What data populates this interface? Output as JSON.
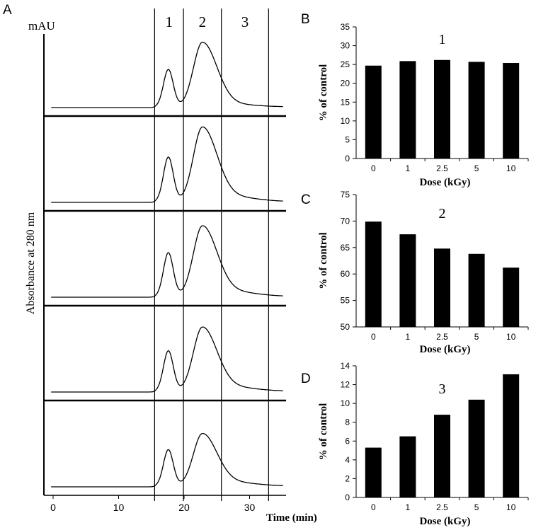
{
  "chart_data": [
    {
      "panel": "A",
      "type": "line",
      "title": "",
      "ylabel": "Absorbance at 280 nm",
      "yunit": "mAU",
      "xlabel": "Time (min)",
      "xlim": [
        -1.5,
        35.5
      ],
      "xticks": [
        0,
        10,
        20,
        30
      ],
      "xtick_labels": [
        "0",
        "10",
        "20",
        "30"
      ],
      "fraction_boundaries": [
        15.5,
        19.9,
        25.7,
        32.9
      ],
      "fraction_labels": [
        {
          "label": "1",
          "x": 17.7
        },
        {
          "label": "2",
          "x": 22.8
        },
        {
          "label": "3",
          "x": 29.3
        }
      ],
      "traces": [
        {
          "name": "trace-1",
          "peak1_height": 0.55,
          "peak2_height": 0.91,
          "tail_height": 0.045
        },
        {
          "name": "trace-2",
          "peak1_height": 0.55,
          "peak2_height": 0.86,
          "tail_height": 0.07
        },
        {
          "name": "trace-3",
          "peak1_height": 0.54,
          "peak2_height": 0.81,
          "tail_height": 0.07
        },
        {
          "name": "trace-4",
          "peak1_height": 0.5,
          "peak2_height": 0.74,
          "tail_height": 0.06
        },
        {
          "name": "trace-5",
          "peak1_height": 0.45,
          "peak2_height": 0.6,
          "tail_height": 0.055
        }
      ]
    },
    {
      "panel": "B",
      "type": "bar",
      "title": "1",
      "xlabel": "Dose (kGy)",
      "ylabel": "% of control",
      "categories": [
        "0",
        "1",
        "2.5",
        "5",
        "10"
      ],
      "values": [
        24.7,
        25.9,
        26.2,
        25.7,
        25.4
      ],
      "ylim": [
        0,
        35
      ],
      "yticks": [
        0,
        5,
        10,
        15,
        20,
        25,
        30,
        35
      ]
    },
    {
      "panel": "C",
      "type": "bar",
      "title": "2",
      "xlabel": "Dose (kGy)",
      "ylabel": "% of control",
      "categories": [
        "0",
        "1",
        "2.5",
        "5",
        "10"
      ],
      "values": [
        69.9,
        67.5,
        64.8,
        63.8,
        61.2
      ],
      "ylim": [
        50,
        75
      ],
      "yticks": [
        50,
        55,
        60,
        65,
        70,
        75
      ]
    },
    {
      "panel": "D",
      "type": "bar",
      "title": "3",
      "xlabel": "Dose (kGy)",
      "ylabel": "% of control",
      "categories": [
        "0",
        "1",
        "2.5",
        "5",
        "10"
      ],
      "values": [
        5.3,
        6.5,
        8.8,
        10.4,
        13.1
      ],
      "ylim": [
        0,
        14
      ],
      "yticks": [
        0,
        2,
        4,
        6,
        8,
        10,
        12,
        14
      ]
    }
  ]
}
